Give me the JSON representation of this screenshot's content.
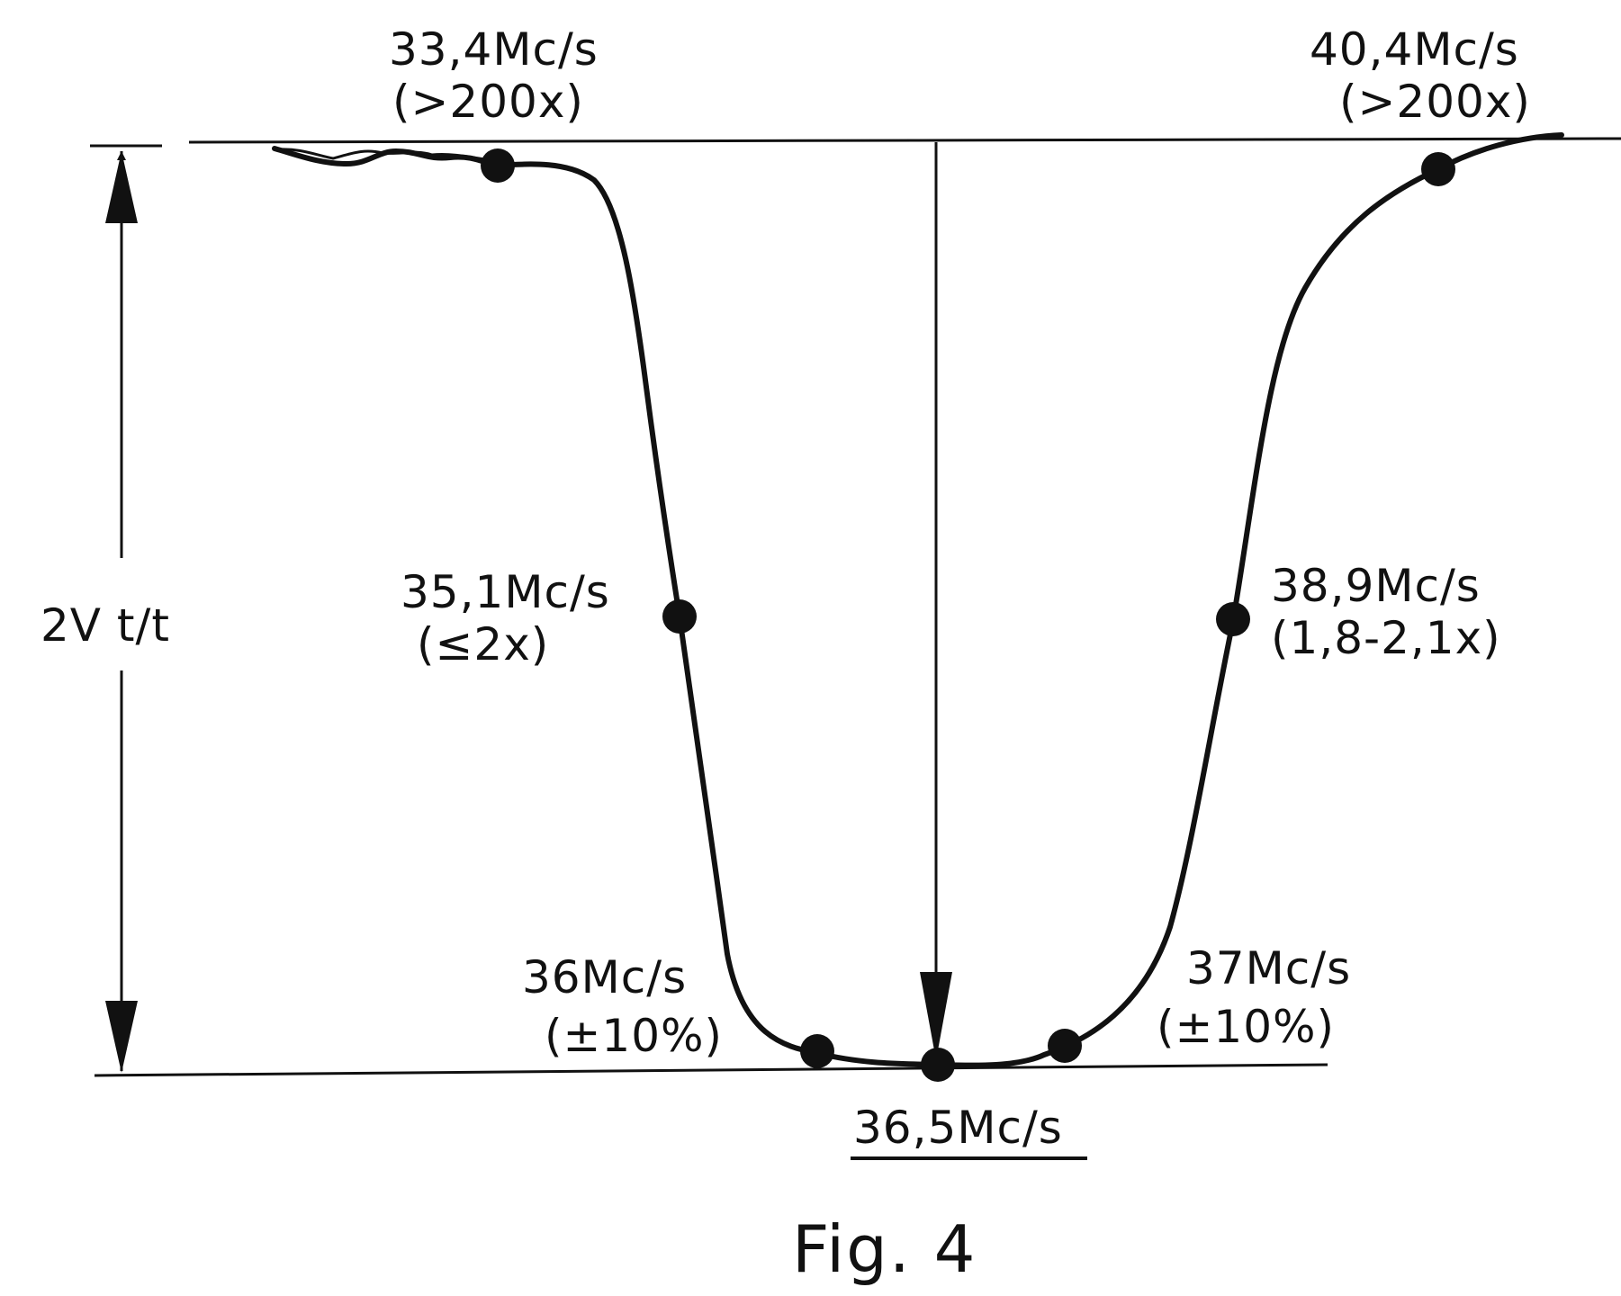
{
  "figure": {
    "caption": "Fig. 4",
    "amplitude_label": "2V t/t",
    "ink_color": "#111111",
    "background_color": "#ffffff"
  },
  "points": {
    "p1": {
      "frequency": "33,4Mc/s",
      "attenuation": "(>200x)"
    },
    "p2": {
      "frequency": "35,1Mc/s",
      "attenuation": "(≤2x)"
    },
    "p3": {
      "frequency": "36Mc/s",
      "attenuation": "(±10%)"
    },
    "p4": {
      "frequency": "36,5Mc/s"
    },
    "p5": {
      "frequency": "37Mc/s",
      "attenuation": "(±10%)"
    },
    "p6": {
      "frequency": "38,9Mc/s",
      "attenuation": "(1,8-2,1x)"
    },
    "p7": {
      "frequency": "40,4Mc/s",
      "attenuation": "(>200x)"
    }
  }
}
